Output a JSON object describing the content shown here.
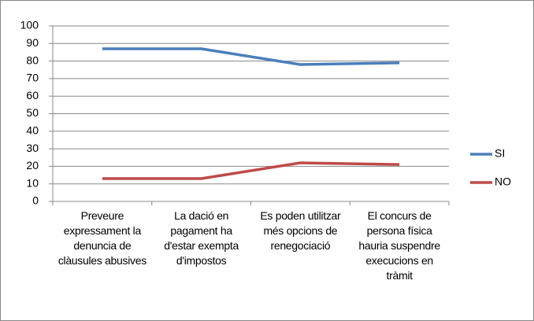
{
  "chart_data": {
    "type": "line",
    "categories": [
      "Preveure expressament la denuncia de clàusules abusives",
      "La dació en pagament ha d'estar exempta d'impostos",
      "Es poden utilitzar més opcions de renegociació",
      "El concurs de persona física hauria suspendre execucions en tràmit"
    ],
    "series": [
      {
        "name": "SI",
        "color": "#4a7ebb",
        "values": [
          87,
          87,
          78,
          79
        ]
      },
      {
        "name": "NO",
        "color": "#be4b48",
        "values": [
          13,
          13,
          22,
          21
        ]
      }
    ],
    "ylim": [
      0,
      100
    ],
    "yticks": [
      0,
      10,
      20,
      30,
      40,
      50,
      60,
      70,
      80,
      90,
      100
    ],
    "grid": true,
    "legend": "right"
  }
}
